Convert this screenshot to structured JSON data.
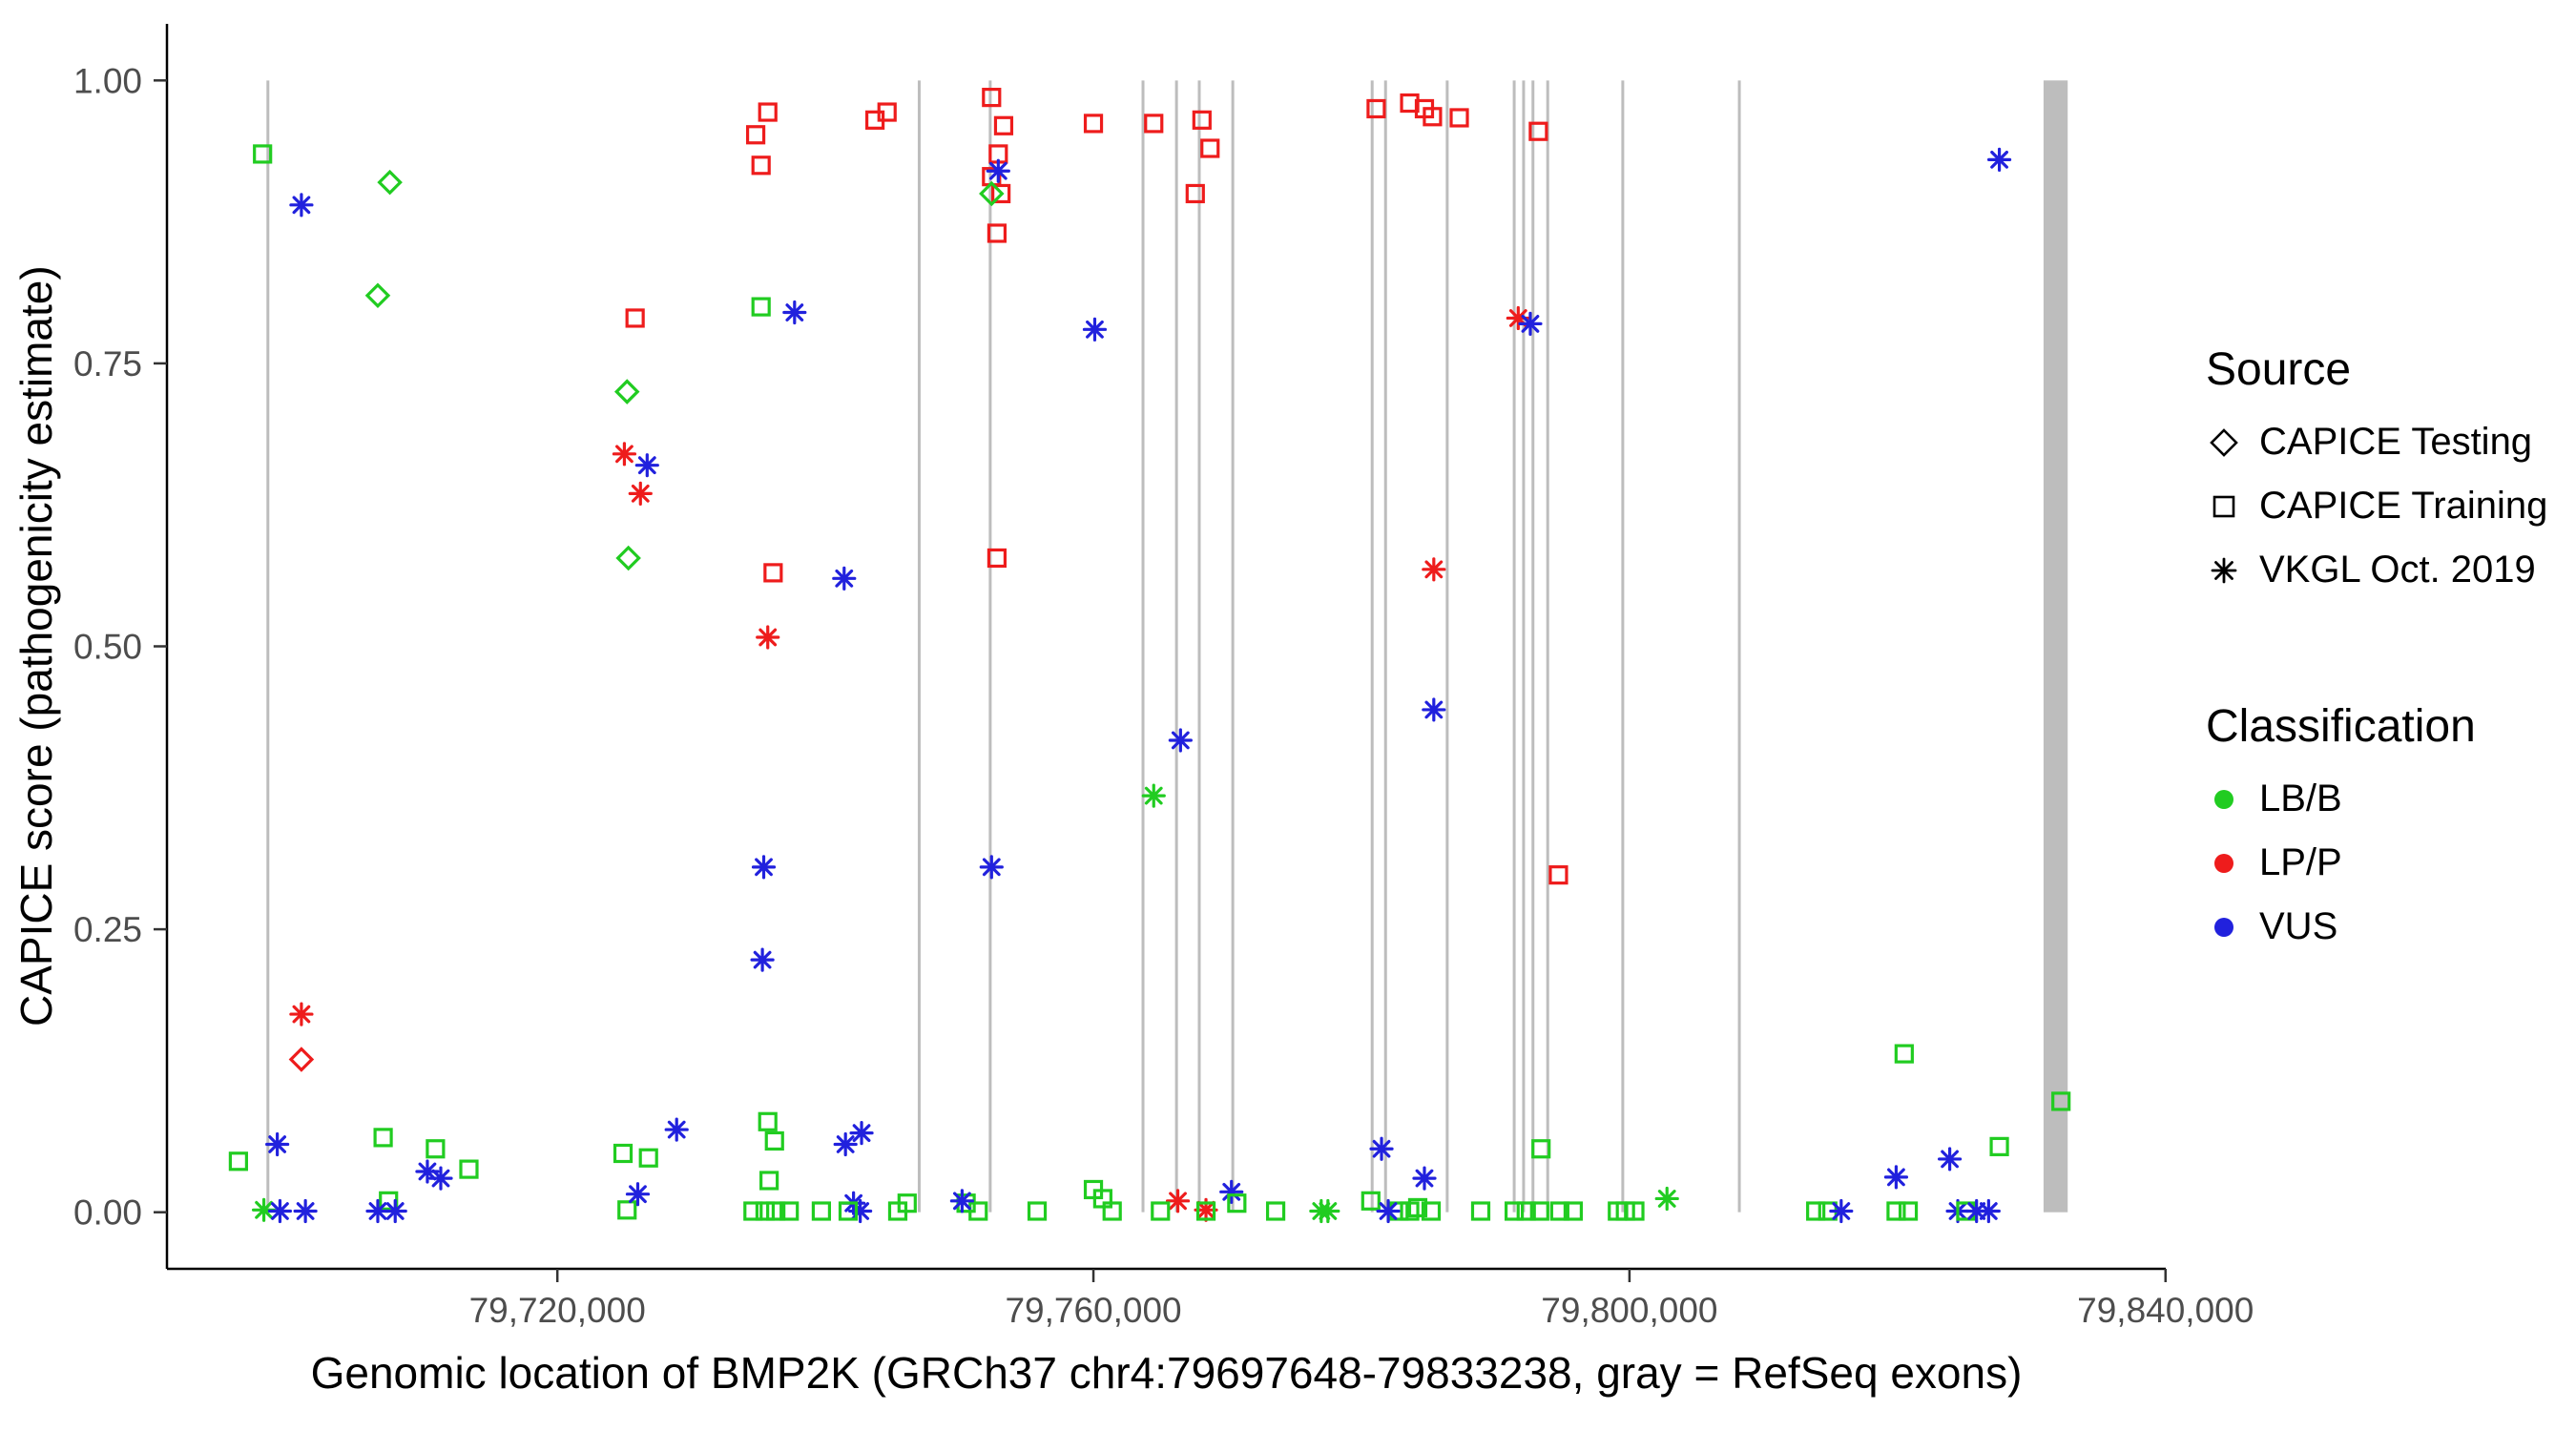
{
  "chart_data": {
    "type": "scatter",
    "title": "",
    "xlabel": "Genomic location of BMP2K (GRCh37 chr4:79697648-79833238, gray = RefSeq exons)",
    "ylabel": "CAPICE score (pathogenicity estimate)",
    "xlim": [
      79690868,
      79840018
    ],
    "ylim": [
      -0.05,
      1.05
    ],
    "x_ticks": [
      {
        "value": 79720000,
        "label": "79,720,000"
      },
      {
        "value": 79760000,
        "label": "79,760,000"
      },
      {
        "value": 79800000,
        "label": "79,800,000"
      },
      {
        "value": 79840000,
        "label": "79,840,000"
      }
    ],
    "y_ticks": [
      {
        "value": 0.0,
        "label": "0.00"
      },
      {
        "value": 0.25,
        "label": "0.25"
      },
      {
        "value": 0.5,
        "label": "0.50"
      },
      {
        "value": 0.75,
        "label": "0.75"
      },
      {
        "value": 1.0,
        "label": "1.00"
      }
    ],
    "colors": {
      "LB/B": "#21CC21",
      "LP/P": "#EE1C1C",
      "VUS": "#2121DD"
    },
    "shape_by_source": {
      "testing": "diamond",
      "training": "square",
      "vkgl": "asterisk"
    },
    "exon_color": "#BDBDBD",
    "exon_lines": [
      79698400,
      79747000,
      79752300,
      79763700,
      79766200,
      79767900,
      79770400,
      79780800,
      79781800,
      79786400,
      79791400,
      79792100,
      79792800,
      79793900,
      79799500,
      79808200
    ],
    "exon_band": {
      "start": 79830900,
      "end": 79832700
    },
    "points": [
      [
        79696200,
        0.045,
        "LB/B",
        "training"
      ],
      [
        79698000,
        0.935,
        "LB/B",
        "training"
      ],
      [
        79698100,
        0.002,
        "LB/B",
        "vkgl"
      ],
      [
        79699300,
        0.001,
        "VUS",
        "vkgl"
      ],
      [
        79699100,
        0.06,
        "VUS",
        "vkgl"
      ],
      [
        79700900,
        0.89,
        "VUS",
        "vkgl"
      ],
      [
        79700900,
        0.175,
        "LP/P",
        "vkgl"
      ],
      [
        79700900,
        0.135,
        "LP/P",
        "testing"
      ],
      [
        79701200,
        0.001,
        "VUS",
        "vkgl"
      ],
      [
        79706600,
        0.81,
        "LB/B",
        "testing"
      ],
      [
        79707500,
        0.91,
        "LB/B",
        "testing"
      ],
      [
        79707000,
        0.066,
        "LB/B",
        "training"
      ],
      [
        79707400,
        0.01,
        "LB/B",
        "training"
      ],
      [
        79706600,
        0.001,
        "VUS",
        "vkgl"
      ],
      [
        79707900,
        0.001,
        "VUS",
        "vkgl"
      ],
      [
        79710300,
        0.036,
        "VUS",
        "vkgl"
      ],
      [
        79711300,
        0.03,
        "VUS",
        "vkgl"
      ],
      [
        79710900,
        0.056,
        "LB/B",
        "training"
      ],
      [
        79713400,
        0.038,
        "LB/B",
        "training"
      ],
      [
        79725800,
        0.79,
        "LP/P",
        "training"
      ],
      [
        79725200,
        0.725,
        "LB/B",
        "testing"
      ],
      [
        79725000,
        0.67,
        "LP/P",
        "vkgl"
      ],
      [
        79726700,
        0.66,
        "VUS",
        "vkgl"
      ],
      [
        79726200,
        0.635,
        "LP/P",
        "vkgl"
      ],
      [
        79725300,
        0.578,
        "LB/B",
        "testing"
      ],
      [
        79724900,
        0.052,
        "LB/B",
        "training"
      ],
      [
        79726800,
        0.048,
        "LB/B",
        "training"
      ],
      [
        79725200,
        0.002,
        "LB/B",
        "training"
      ],
      [
        79726000,
        0.016,
        "VUS",
        "vkgl"
      ],
      [
        79728900,
        0.073,
        "VUS",
        "vkgl"
      ],
      [
        79735700,
        0.972,
        "LP/P",
        "training"
      ],
      [
        79734800,
        0.952,
        "LP/P",
        "training"
      ],
      [
        79735200,
        0.925,
        "LP/P",
        "training"
      ],
      [
        79735200,
        0.8,
        "LB/B",
        "training"
      ],
      [
        79737700,
        0.795,
        "VUS",
        "vkgl"
      ],
      [
        79736100,
        0.565,
        "LP/P",
        "training"
      ],
      [
        79735700,
        0.508,
        "LP/P",
        "vkgl"
      ],
      [
        79741400,
        0.56,
        "VUS",
        "vkgl"
      ],
      [
        79735400,
        0.305,
        "VUS",
        "vkgl"
      ],
      [
        79735300,
        0.223,
        "VUS",
        "vkgl"
      ],
      [
        79735700,
        0.08,
        "LB/B",
        "training"
      ],
      [
        79736200,
        0.063,
        "LB/B",
        "training"
      ],
      [
        79735800,
        0.028,
        "LB/B",
        "training"
      ],
      [
        79734600,
        0.001,
        "LB/B",
        "training"
      ],
      [
        79735500,
        0.001,
        "LB/B",
        "training"
      ],
      [
        79736300,
        0.001,
        "LB/B",
        "training"
      ],
      [
        79737300,
        0.001,
        "LB/B",
        "training"
      ],
      [
        79739700,
        0.001,
        "LB/B",
        "training"
      ],
      [
        79741500,
        0.06,
        "VUS",
        "vkgl"
      ],
      [
        79742700,
        0.07,
        "VUS",
        "vkgl"
      ],
      [
        79742100,
        0.008,
        "VUS",
        "vkgl"
      ],
      [
        79742600,
        0.001,
        "VUS",
        "vkgl"
      ],
      [
        79741700,
        0.001,
        "LB/B",
        "training"
      ],
      [
        79743700,
        0.965,
        "LP/P",
        "training"
      ],
      [
        79744600,
        0.972,
        "LP/P",
        "training"
      ],
      [
        79745400,
        0.001,
        "LB/B",
        "training"
      ],
      [
        79746100,
        0.008,
        "LB/B",
        "training"
      ],
      [
        79752400,
        0.985,
        "LP/P",
        "training"
      ],
      [
        79753300,
        0.96,
        "LP/P",
        "training"
      ],
      [
        79752900,
        0.935,
        "LP/P",
        "training"
      ],
      [
        79752400,
        0.915,
        "LP/P",
        "training"
      ],
      [
        79753100,
        0.9,
        "LP/P",
        "training"
      ],
      [
        79752800,
        0.865,
        "LP/P",
        "training"
      ],
      [
        79752900,
        0.92,
        "VUS",
        "vkgl"
      ],
      [
        79752400,
        0.9,
        "LB/B",
        "testing"
      ],
      [
        79752800,
        0.578,
        "LP/P",
        "training"
      ],
      [
        79752400,
        0.305,
        "VUS",
        "vkgl"
      ],
      [
        79750500,
        0.008,
        "LB/B",
        "training"
      ],
      [
        79751400,
        0.001,
        "LB/B",
        "training"
      ],
      [
        79750200,
        0.01,
        "VUS",
        "vkgl"
      ],
      [
        79755800,
        0.001,
        "LB/B",
        "training"
      ],
      [
        79760000,
        0.962,
        "LP/P",
        "training"
      ],
      [
        79760100,
        0.78,
        "VUS",
        "vkgl"
      ],
      [
        79760000,
        0.02,
        "LB/B",
        "training"
      ],
      [
        79760700,
        0.012,
        "LB/B",
        "training"
      ],
      [
        79761400,
        0.001,
        "LB/B",
        "training"
      ],
      [
        79764500,
        0.962,
        "LP/P",
        "training"
      ],
      [
        79764500,
        0.368,
        "LB/B",
        "vkgl"
      ],
      [
        79768100,
        0.965,
        "LP/P",
        "training"
      ],
      [
        79768700,
        0.94,
        "LP/P",
        "training"
      ],
      [
        79767600,
        0.9,
        "LP/P",
        "training"
      ],
      [
        79766500,
        0.417,
        "VUS",
        "vkgl"
      ],
      [
        79766300,
        0.01,
        "LP/P",
        "vkgl"
      ],
      [
        79770300,
        0.018,
        "VUS",
        "vkgl"
      ],
      [
        79768400,
        0.002,
        "LP/P",
        "vkgl"
      ],
      [
        79768400,
        0.001,
        "LB/B",
        "training"
      ],
      [
        79765000,
        0.001,
        "LB/B",
        "training"
      ],
      [
        79770700,
        0.008,
        "LB/B",
        "training"
      ],
      [
        79773600,
        0.001,
        "LB/B",
        "training"
      ],
      [
        79777000,
        0.001,
        "LB/B",
        "vkgl"
      ],
      [
        79777500,
        0.001,
        "LB/B",
        "vkgl"
      ],
      [
        79781100,
        0.975,
        "LP/P",
        "training"
      ],
      [
        79783600,
        0.98,
        "LP/P",
        "training"
      ],
      [
        79784700,
        0.975,
        "LP/P",
        "training"
      ],
      [
        79785300,
        0.968,
        "LP/P",
        "training"
      ],
      [
        79787300,
        0.967,
        "LP/P",
        "training"
      ],
      [
        79785400,
        0.568,
        "LP/P",
        "vkgl"
      ],
      [
        79785400,
        0.444,
        "VUS",
        "vkgl"
      ],
      [
        79781500,
        0.056,
        "VUS",
        "vkgl"
      ],
      [
        79784700,
        0.03,
        "VUS",
        "vkgl"
      ],
      [
        79780700,
        0.01,
        "LB/B",
        "training"
      ],
      [
        79782800,
        0.001,
        "LB/B",
        "training"
      ],
      [
        79783600,
        0.001,
        "LB/B",
        "training"
      ],
      [
        79784200,
        0.004,
        "LB/B",
        "training"
      ],
      [
        79785200,
        0.001,
        "LB/B",
        "training"
      ],
      [
        79782000,
        0.001,
        "VUS",
        "vkgl"
      ],
      [
        79788900,
        0.001,
        "LB/B",
        "training"
      ],
      [
        79791700,
        0.79,
        "LP/P",
        "vkgl"
      ],
      [
        79792600,
        0.785,
        "VUS",
        "vkgl"
      ],
      [
        79793200,
        0.955,
        "LP/P",
        "training"
      ],
      [
        79794700,
        0.298,
        "LP/P",
        "training"
      ],
      [
        79793400,
        0.056,
        "LB/B",
        "training"
      ],
      [
        79791400,
        0.001,
        "LB/B",
        "training"
      ],
      [
        79792300,
        0.001,
        "LB/B",
        "training"
      ],
      [
        79793300,
        0.001,
        "LB/B",
        "training"
      ],
      [
        79794800,
        0.001,
        "LB/B",
        "training"
      ],
      [
        79795800,
        0.001,
        "LB/B",
        "training"
      ],
      [
        79799100,
        0.001,
        "LB/B",
        "training"
      ],
      [
        79799700,
        0.001,
        "LB/B",
        "training"
      ],
      [
        79800400,
        0.001,
        "LB/B",
        "training"
      ],
      [
        79802800,
        0.012,
        "LB/B",
        "vkgl"
      ],
      [
        79813900,
        0.001,
        "LB/B",
        "training"
      ],
      [
        79814800,
        0.001,
        "LB/B",
        "training"
      ],
      [
        79815800,
        0.001,
        "VUS",
        "vkgl"
      ],
      [
        79820500,
        0.14,
        "LB/B",
        "training"
      ],
      [
        79819900,
        0.031,
        "VUS",
        "vkgl"
      ],
      [
        79819900,
        0.001,
        "LB/B",
        "training"
      ],
      [
        79820800,
        0.001,
        "LB/B",
        "training"
      ],
      [
        79823900,
        0.047,
        "VUS",
        "vkgl"
      ],
      [
        79827600,
        0.058,
        "LB/B",
        "training"
      ],
      [
        79824500,
        0.001,
        "VUS",
        "vkgl"
      ],
      [
        79825100,
        0.001,
        "LB/B",
        "training"
      ],
      [
        79825900,
        0.001,
        "VUS",
        "vkgl"
      ],
      [
        79826800,
        0.001,
        "VUS",
        "vkgl"
      ],
      [
        79827600,
        0.93,
        "VUS",
        "vkgl"
      ],
      [
        79832200,
        0.098,
        "LB/B",
        "training"
      ]
    ]
  },
  "legend": {
    "source": {
      "title": "Source",
      "items": [
        {
          "label": "CAPICE Testing",
          "shape": "diamond"
        },
        {
          "label": "CAPICE Training",
          "shape": "square"
        },
        {
          "label": "VKGL Oct. 2019",
          "shape": "asterisk"
        }
      ]
    },
    "classification": {
      "title": "Classification",
      "items": [
        {
          "label": "LB/B"
        },
        {
          "label": "LP/P"
        },
        {
          "label": "VUS"
        }
      ]
    }
  }
}
